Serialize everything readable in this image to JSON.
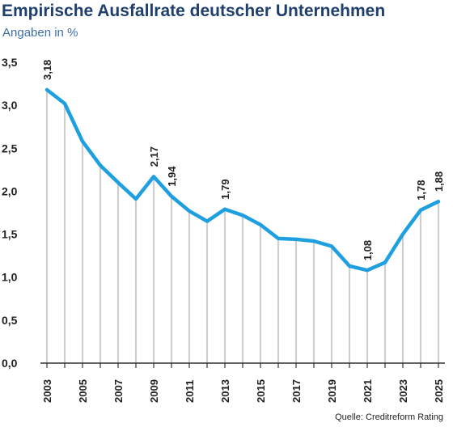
{
  "header": {
    "title": "Empirische Ausfallrate deutscher Unternehmen",
    "subtitle": "Angaben in %"
  },
  "footer": {
    "source": "Quelle: Creditreform Rating"
  },
  "colors": {
    "title": "#1f3f6d",
    "subtitle": "#3d6fa6",
    "line": "#1e9fe0",
    "drop_lines": "#cfcfcf",
    "axis": "#333333"
  },
  "chart_data": {
    "type": "line",
    "title": "Empirische Ausfallrate deutscher Unternehmen",
    "subtitle": "Angaben in %",
    "xlabel": "",
    "ylabel": "",
    "x": [
      2003,
      2004,
      2005,
      2006,
      2007,
      2008,
      2009,
      2010,
      2011,
      2012,
      2013,
      2014,
      2015,
      2016,
      2017,
      2018,
      2019,
      2020,
      2021,
      2022,
      2023,
      2024,
      2025
    ],
    "series": [
      {
        "name": "",
        "values": [
          3.18,
          3.02,
          2.58,
          2.3,
          2.1,
          1.91,
          2.17,
          1.94,
          1.77,
          1.65,
          1.79,
          1.72,
          1.61,
          1.45,
          1.44,
          1.42,
          1.36,
          1.13,
          1.08,
          1.17,
          1.5,
          1.78,
          1.88
        ]
      }
    ],
    "data_labels": [
      {
        "x": 2003,
        "text": "3,18"
      },
      {
        "x": 2009,
        "text": "2,17"
      },
      {
        "x": 2010,
        "text": "1,94"
      },
      {
        "x": 2013,
        "text": "1,79"
      },
      {
        "x": 2021,
        "text": "1,08"
      },
      {
        "x": 2024,
        "text": "1,78"
      },
      {
        "x": 2025,
        "text": "1,88"
      }
    ],
    "y_ticks": [
      "0,0",
      "0,5",
      "1,0",
      "1,5",
      "2,0",
      "2,5",
      "3,0",
      "3,5"
    ],
    "y_tick_values": [
      0,
      0.5,
      1,
      1.5,
      2,
      2.5,
      3,
      3.5
    ],
    "x_tick_labels": [
      "2003",
      "2005",
      "2007",
      "2009",
      "2011",
      "2013",
      "2015",
      "2017",
      "2019",
      "2021",
      "2023",
      "2025"
    ],
    "ylim": [
      0,
      3.5
    ],
    "grid": false,
    "drop_lines": true
  }
}
